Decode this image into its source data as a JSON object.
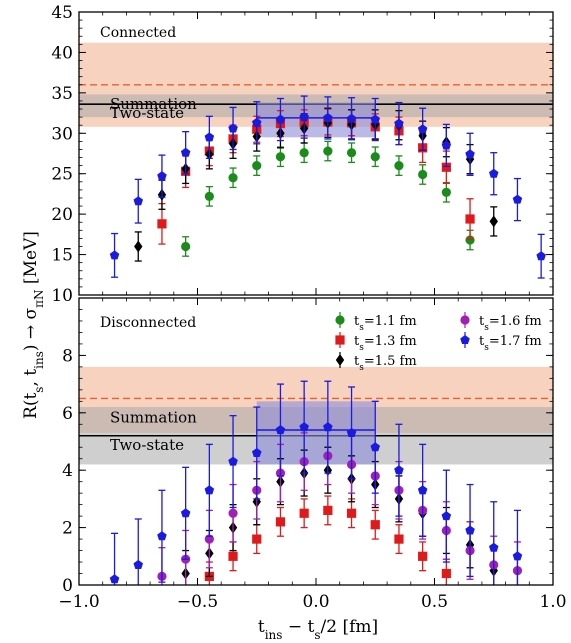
{
  "chart_data": [
    {
      "type": "scatter",
      "panel_label": "Connected",
      "ylim": [
        10,
        45
      ],
      "xlim": [
        -1.0,
        1.0
      ],
      "yticks": [
        10,
        15,
        20,
        25,
        30,
        35,
        40,
        45
      ],
      "grid": false,
      "bands": [
        {
          "name": "Summation",
          "center": 36.0,
          "low": 30.8,
          "high": 41.2,
          "color": "#f4c4aa",
          "line_style": "dashed",
          "line_color": "#e8622a"
        },
        {
          "name": "Two-state",
          "center": 33.6,
          "low": 32.0,
          "high": 34.8,
          "color": "#a8a8a8",
          "line_style": "solid",
          "line_color": "#000000"
        }
      ],
      "plateau_box": {
        "x": [
          -0.25,
          0.25
        ],
        "center": 31.9,
        "low": 29.5,
        "high": 33.8,
        "color": "#8c8cd8"
      },
      "series": [
        {
          "name": "t_s=1.1 fm",
          "marker": "circle",
          "color": "#1a8c1a",
          "points": [
            [
              -0.55,
              16.0,
              1.2
            ],
            [
              -0.45,
              22.2,
              1.2
            ],
            [
              -0.35,
              24.5,
              1.2
            ],
            [
              -0.25,
              26.0,
              1.2
            ],
            [
              -0.15,
              27.1,
              1.2
            ],
            [
              -0.05,
              27.6,
              1.2
            ],
            [
              0.05,
              27.8,
              1.2
            ],
            [
              0.15,
              27.6,
              1.2
            ],
            [
              0.25,
              27.1,
              1.2
            ],
            [
              0.35,
              26.0,
              1.2
            ],
            [
              0.45,
              24.9,
              1.2
            ],
            [
              0.55,
              22.7,
              1.2
            ],
            [
              0.65,
              16.8,
              1.2
            ]
          ]
        },
        {
          "name": "t_s=1.3 fm",
          "marker": "square",
          "color": "#e01a1a",
          "points": [
            [
              -0.65,
              18.8,
              2.5
            ],
            [
              -0.55,
              25.3,
              2.0
            ],
            [
              -0.45,
              27.8,
              1.8
            ],
            [
              -0.35,
              29.3,
              1.7
            ],
            [
              -0.25,
              30.5,
              1.6
            ],
            [
              -0.15,
              31.2,
              1.6
            ],
            [
              -0.05,
              31.3,
              1.6
            ],
            [
              0.05,
              31.4,
              1.6
            ],
            [
              0.15,
              31.3,
              1.6
            ],
            [
              0.25,
              30.8,
              1.6
            ],
            [
              0.35,
              30.3,
              1.7
            ],
            [
              0.45,
              28.2,
              1.8
            ],
            [
              0.55,
              25.8,
              2.0
            ],
            [
              0.65,
              19.4,
              2.5
            ]
          ]
        },
        {
          "name": "t_s=1.5 fm",
          "marker": "diamond",
          "color": "#000000",
          "points": [
            [
              -0.75,
              16.0,
              1.8
            ],
            [
              -0.65,
              22.4,
              1.8
            ],
            [
              -0.55,
              25.6,
              1.8
            ],
            [
              -0.45,
              27.4,
              1.8
            ],
            [
              -0.35,
              28.7,
              1.8
            ],
            [
              -0.25,
              29.6,
              1.8
            ],
            [
              -0.15,
              30.0,
              1.8
            ],
            [
              -0.05,
              30.6,
              1.8
            ],
            [
              0.05,
              31.3,
              1.8
            ],
            [
              0.15,
              31.1,
              1.8
            ],
            [
              0.25,
              31.1,
              1.8
            ],
            [
              0.35,
              31.0,
              1.8
            ],
            [
              0.45,
              29.7,
              1.8
            ],
            [
              0.55,
              28.9,
              1.8
            ],
            [
              0.65,
              26.8,
              1.8
            ],
            [
              0.75,
              19.1,
              1.8
            ]
          ]
        },
        {
          "name": "t_s=1.7 fm",
          "marker": "pentagon",
          "color": "#1a1ae0",
          "points": [
            [
              -0.85,
              14.9,
              2.7
            ],
            [
              -0.75,
              21.6,
              2.7
            ],
            [
              -0.65,
              24.7,
              2.6
            ],
            [
              -0.55,
              27.6,
              2.6
            ],
            [
              -0.45,
              29.5,
              2.6
            ],
            [
              -0.35,
              30.6,
              2.6
            ],
            [
              -0.25,
              31.3,
              2.6
            ],
            [
              -0.15,
              31.7,
              2.6
            ],
            [
              -0.05,
              32.0,
              2.6
            ],
            [
              0.05,
              31.9,
              2.6
            ],
            [
              0.15,
              31.8,
              2.6
            ],
            [
              0.25,
              31.7,
              2.6
            ],
            [
              0.35,
              31.2,
              2.6
            ],
            [
              0.45,
              30.5,
              2.6
            ],
            [
              0.55,
              28.5,
              2.6
            ],
            [
              0.65,
              27.4,
              2.6
            ],
            [
              0.75,
              25.0,
              2.6
            ],
            [
              0.85,
              21.8,
              2.6
            ],
            [
              0.95,
              14.8,
              2.7
            ]
          ]
        }
      ]
    },
    {
      "type": "scatter",
      "panel_label": "Disconnected",
      "ylim": [
        0,
        10
      ],
      "xlim": [
        -1.0,
        1.0
      ],
      "yticks": [
        0,
        2,
        4,
        6,
        8
      ],
      "xticks": [
        -1.0,
        -0.5,
        0.0,
        0.5,
        1.0
      ],
      "xtick_labels": [
        "−1.0",
        "−0.5",
        "0.0",
        "0.5",
        "1.0"
      ],
      "grid": false,
      "legend_placement": "top-right",
      "bands": [
        {
          "name": "Summation",
          "center": 6.5,
          "low": 5.3,
          "high": 7.6,
          "color": "#f4c4aa",
          "line_style": "dashed",
          "line_color": "#e8622a"
        },
        {
          "name": "Two-state",
          "center": 5.2,
          "low": 4.2,
          "high": 6.2,
          "color": "#a8a8a8",
          "line_style": "solid",
          "line_color": "#000000"
        }
      ],
      "plateau_box": {
        "x": [
          -0.25,
          0.25
        ],
        "center": 5.4,
        "low": 4.2,
        "high": 6.4,
        "color": "#8c8cd8"
      },
      "series": [
        {
          "name": "t_s=1.1 fm",
          "marker": "circle",
          "color": "#1a8c1a",
          "points": []
        },
        {
          "name": "t_s=1.3 fm",
          "marker": "square",
          "color": "#e01a1a",
          "points": [
            [
              -0.45,
              0.3,
              0.5
            ],
            [
              -0.35,
              1.0,
              0.5
            ],
            [
              -0.25,
              1.6,
              0.5
            ],
            [
              -0.15,
              2.2,
              0.5
            ],
            [
              -0.05,
              2.5,
              0.5
            ],
            [
              0.05,
              2.6,
              0.5
            ],
            [
              0.15,
              2.5,
              0.5
            ],
            [
              0.25,
              2.1,
              0.5
            ],
            [
              0.35,
              1.6,
              0.5
            ],
            [
              0.45,
              1.0,
              0.5
            ],
            [
              0.55,
              0.4,
              0.5
            ]
          ]
        },
        {
          "name": "t_s=1.5 fm",
          "marker": "diamond",
          "color": "#000000",
          "points": [
            [
              -0.55,
              0.4,
              0.8
            ],
            [
              -0.45,
              1.1,
              0.8
            ],
            [
              -0.35,
              2.0,
              0.8
            ],
            [
              -0.25,
              2.9,
              0.8
            ],
            [
              -0.15,
              3.6,
              0.8
            ],
            [
              -0.05,
              3.9,
              0.8
            ],
            [
              0.05,
              4.0,
              0.8
            ],
            [
              0.15,
              3.7,
              0.8
            ],
            [
              0.25,
              3.5,
              0.8
            ],
            [
              0.35,
              3.0,
              0.8
            ],
            [
              0.45,
              2.5,
              0.8
            ],
            [
              0.55,
              1.9,
              0.8
            ],
            [
              0.65,
              1.4,
              0.8
            ],
            [
              0.75,
              0.5,
              0.8
            ]
          ]
        },
        {
          "name": "t_s=1.6 fm",
          "marker": "circle",
          "color": "#a020b4",
          "points": [
            [
              -0.65,
              0.3,
              1.0
            ],
            [
              -0.55,
              0.9,
              1.0
            ],
            [
              -0.45,
              1.6,
              1.0
            ],
            [
              -0.35,
              2.5,
              1.0
            ],
            [
              -0.25,
              3.3,
              1.0
            ],
            [
              -0.15,
              3.9,
              1.0
            ],
            [
              -0.05,
              4.3,
              1.0
            ],
            [
              0.05,
              4.5,
              1.0
            ],
            [
              0.15,
              4.2,
              1.0
            ],
            [
              0.25,
              3.8,
              1.0
            ],
            [
              0.35,
              3.3,
              1.0
            ],
            [
              0.45,
              2.6,
              1.0
            ],
            [
              0.55,
              1.9,
              1.0
            ],
            [
              0.65,
              1.2,
              1.0
            ],
            [
              0.75,
              0.7,
              1.0
            ],
            [
              0.85,
              0.5,
              1.0
            ]
          ]
        },
        {
          "name": "t_s=1.7 fm",
          "marker": "pentagon",
          "color": "#1a1ae0",
          "points": [
            [
              -0.85,
              0.2,
              1.6
            ],
            [
              -0.75,
              0.7,
              1.6
            ],
            [
              -0.65,
              1.7,
              1.6
            ],
            [
              -0.55,
              2.5,
              1.6
            ],
            [
              -0.45,
              3.3,
              1.6
            ],
            [
              -0.35,
              4.3,
              1.6
            ],
            [
              -0.25,
              4.6,
              1.6
            ],
            [
              -0.15,
              5.4,
              1.6
            ],
            [
              -0.05,
              5.5,
              1.6
            ],
            [
              0.05,
              5.5,
              1.6
            ],
            [
              0.15,
              5.3,
              1.6
            ],
            [
              0.25,
              4.8,
              1.6
            ],
            [
              0.35,
              4.0,
              1.6
            ],
            [
              0.45,
              3.3,
              1.6
            ],
            [
              0.55,
              2.4,
              1.6
            ],
            [
              0.65,
              1.9,
              1.6
            ],
            [
              0.75,
              1.3,
              1.6
            ],
            [
              0.85,
              1.0,
              1.6
            ]
          ]
        }
      ]
    }
  ],
  "axes": {
    "ylabel": "R(t_s, t_ins) → σ_πN [MeV]",
    "xlabel": "t_ins − t_s/2 [fm]"
  }
}
